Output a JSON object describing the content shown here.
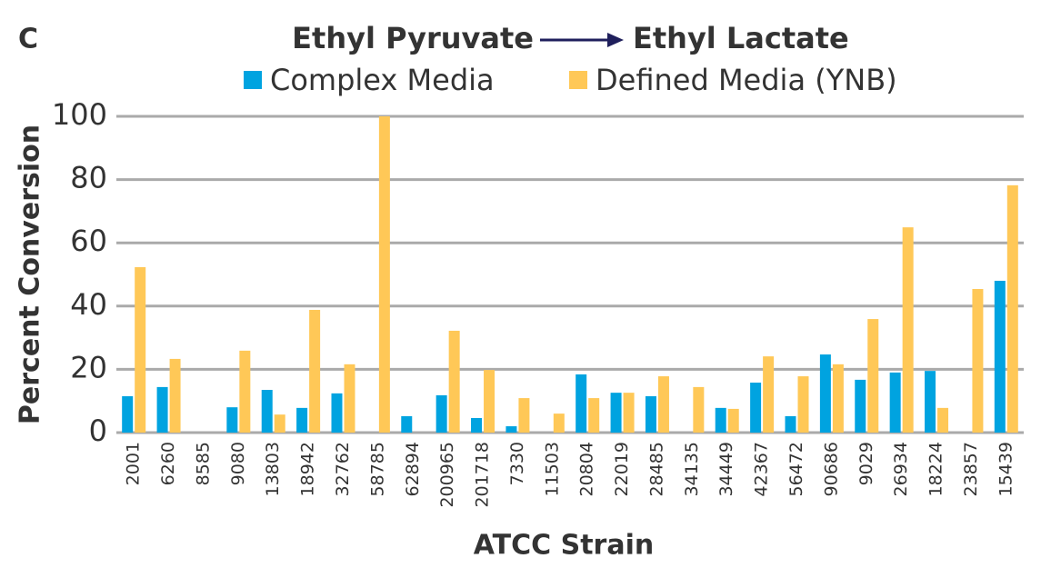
{
  "chart_data": {
    "type": "bar",
    "panel_label": "C",
    "title_parts": [
      "Ethyl Pyruvate",
      "Ethyl Lactate"
    ],
    "x_label": "ATCC Strain",
    "y_label": "Percent Conversion",
    "categories": [
      "2001",
      "6260",
      "8585",
      "9080",
      "13803",
      "18942",
      "32762",
      "58785",
      "62894",
      "200965",
      "201718",
      "7330",
      "11503",
      "20804",
      "22019",
      "28485",
      "34135",
      "34449",
      "42367",
      "56472",
      "90686",
      "9029",
      "26934",
      "18224",
      "23857",
      "15439"
    ],
    "series": [
      {
        "name": "Complex Media",
        "color": "#00a3e0",
        "values": [
          11.5,
          14.4,
          0,
          8,
          13.5,
          7.8,
          12.4,
          0,
          5.2,
          11.8,
          4.6,
          2,
          0,
          18.4,
          12.6,
          11.5,
          0,
          7.8,
          15.8,
          5.2,
          24.7,
          16.7,
          19,
          19.5,
          0,
          48
        ]
      },
      {
        "name": "Defined Media (YNB)",
        "color": "#ffc857",
        "values": [
          52.3,
          23.3,
          0,
          25.9,
          5.7,
          38.8,
          21.6,
          100,
          0,
          32.2,
          19.8,
          10.9,
          6,
          10.9,
          12.6,
          17.8,
          14.4,
          7.5,
          24.1,
          17.8,
          21.6,
          35.9,
          64.9,
          7.8,
          45.4,
          78.2
        ]
      }
    ],
    "ylim": [
      0,
      100
    ],
    "yticks": [
      0,
      20,
      40,
      60,
      80,
      100
    ],
    "grid": true
  }
}
